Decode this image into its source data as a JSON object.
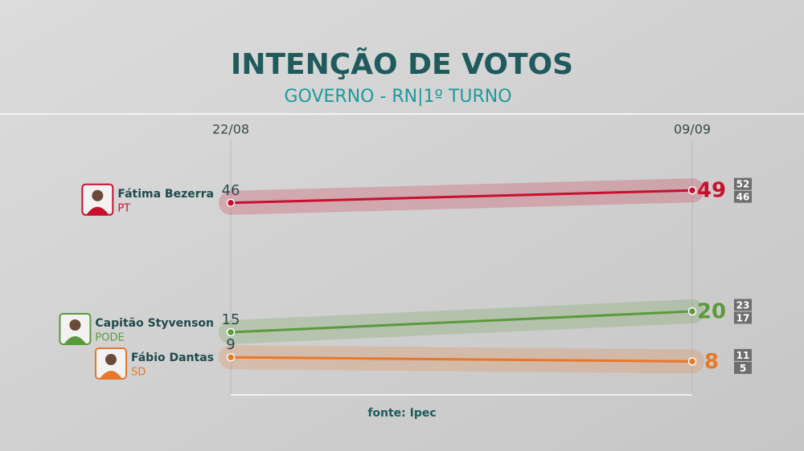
{
  "chart_data": {
    "type": "line",
    "title": "INTENÇÃO DE VOTOS",
    "subtitle": "GOVERNO - RN|1º TURNO",
    "source": "fonte: Ipec",
    "x": [
      "22/08",
      "09/09"
    ],
    "ylim": [
      0,
      60
    ],
    "series": [
      {
        "name": "Fátima Bezerra",
        "party": "PT",
        "color": "#c8102e",
        "values": [
          46,
          49
        ],
        "interval": [
          52,
          46
        ]
      },
      {
        "name": "Capitão Styvenson",
        "party": "PODE",
        "color": "#5b9a3c",
        "values": [
          15,
          20
        ],
        "interval": [
          23,
          17
        ]
      },
      {
        "name": "Fábio Dantas",
        "party": "SD",
        "color": "#e8772a",
        "values": [
          9,
          8
        ],
        "interval": [
          11,
          5
        ]
      }
    ]
  }
}
